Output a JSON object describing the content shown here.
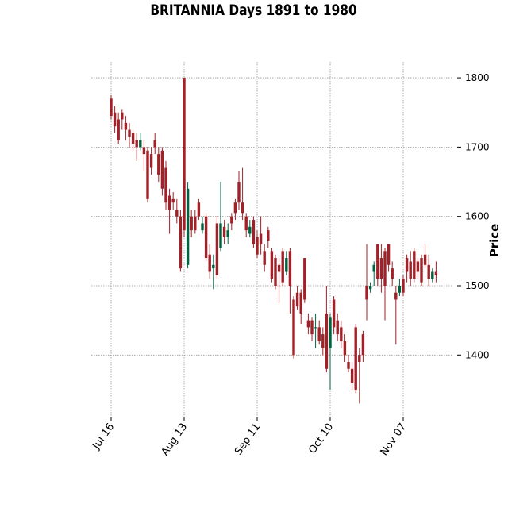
{
  "chart_data": {
    "type": "candlestick",
    "title": "BRITANNIA Days 1891 to 1980",
    "ylabel": "Price",
    "categories": [
      "Jul 16",
      null,
      null,
      null,
      null,
      null,
      null,
      null,
      null,
      null,
      null,
      null,
      null,
      null,
      null,
      null,
      null,
      null,
      null,
      null,
      "Aug 13",
      null,
      null,
      null,
      null,
      null,
      null,
      null,
      null,
      null,
      null,
      null,
      null,
      null,
      null,
      null,
      null,
      null,
      null,
      null,
      "Sep 11",
      null,
      null,
      null,
      null,
      null,
      null,
      null,
      null,
      null,
      null,
      null,
      null,
      null,
      null,
      null,
      null,
      null,
      null,
      null,
      "Oct 10",
      null,
      null,
      null,
      null,
      null,
      null,
      null,
      null,
      null,
      null,
      null,
      null,
      null,
      null,
      null,
      null,
      null,
      null,
      null,
      "Nov 07",
      null,
      null,
      null,
      null,
      null,
      null,
      null,
      null,
      null
    ],
    "open": [
      1770,
      1750,
      1740,
      1750,
      1735,
      1725,
      1720,
      1710,
      1700,
      1700,
      1695,
      1690,
      1710,
      1690,
      1695,
      1670,
      1630,
      1625,
      1610,
      1600,
      1800,
      1530,
      1600,
      1600,
      1620,
      1580,
      1600,
      1545,
      1525,
      1590,
      1555,
      1585,
      1570,
      1600,
      1620,
      1650,
      1620,
      1600,
      1575,
      1595,
      1570,
      1575,
      1550,
      1580,
      1550,
      1540,
      1530,
      1550,
      1520,
      1550,
      1480,
      1490,
      1490,
      1540,
      1450,
      1450,
      1440,
      1440,
      1430,
      1460,
      1410,
      1480,
      1450,
      1440,
      1420,
      1390,
      1380,
      1440,
      1400,
      1430,
      1500,
      1495,
      1520,
      1560,
      1540,
      1550,
      1560,
      1525,
      1490,
      1490,
      1510,
      1540,
      1535,
      1550,
      1535,
      1540,
      1545,
      1530,
      1510,
      1520
    ],
    "high": [
      1775,
      1760,
      1750,
      1755,
      1745,
      1735,
      1725,
      1720,
      1720,
      1710,
      1700,
      1700,
      1720,
      1700,
      1700,
      1680,
      1640,
      1635,
      1625,
      1610,
      1800,
      1650,
      1610,
      1610,
      1625,
      1600,
      1605,
      1560,
      1545,
      1600,
      1650,
      1595,
      1590,
      1605,
      1625,
      1665,
      1670,
      1605,
      1595,
      1600,
      1580,
      1600,
      1560,
      1585,
      1555,
      1545,
      1540,
      1555,
      1550,
      1555,
      1485,
      1500,
      1495,
      1540,
      1460,
      1455,
      1460,
      1450,
      1440,
      1500,
      1460,
      1485,
      1460,
      1450,
      1430,
      1400,
      1390,
      1445,
      1410,
      1435,
      1560,
      1505,
      1535,
      1560,
      1560,
      1555,
      1560,
      1535,
      1500,
      1510,
      1515,
      1545,
      1550,
      1555,
      1540,
      1545,
      1560,
      1545,
      1525,
      1535
    ],
    "low": [
      1740,
      1720,
      1705,
      1725,
      1710,
      1700,
      1695,
      1680,
      1695,
      1665,
      1620,
      1660,
      1690,
      1650,
      1630,
      1610,
      1575,
      1610,
      1590,
      1520,
      1570,
      1525,
      1570,
      1575,
      1595,
      1575,
      1535,
      1510,
      1495,
      1510,
      1550,
      1560,
      1560,
      1580,
      1595,
      1610,
      1595,
      1570,
      1570,
      1555,
      1540,
      1545,
      1520,
      1555,
      1505,
      1495,
      1475,
      1500,
      1515,
      1460,
      1395,
      1465,
      1445,
      1475,
      1430,
      1420,
      1410,
      1415,
      1400,
      1375,
      1350,
      1430,
      1420,
      1410,
      1390,
      1375,
      1350,
      1345,
      1330,
      1390,
      1450,
      1490,
      1500,
      1500,
      1490,
      1450,
      1520,
      1500,
      1415,
      1485,
      1485,
      1505,
      1500,
      1505,
      1510,
      1500,
      1525,
      1500,
      1505,
      1505
    ],
    "close": [
      1745,
      1730,
      1710,
      1740,
      1725,
      1715,
      1705,
      1700,
      1710,
      1690,
      1625,
      1670,
      1700,
      1660,
      1640,
      1620,
      1610,
      1620,
      1600,
      1525,
      1580,
      1640,
      1580,
      1580,
      1600,
      1590,
      1540,
      1520,
      1530,
      1515,
      1590,
      1570,
      1580,
      1590,
      1605,
      1620,
      1605,
      1580,
      1585,
      1560,
      1545,
      1560,
      1530,
      1565,
      1510,
      1500,
      1520,
      1505,
      1540,
      1500,
      1400,
      1470,
      1460,
      1480,
      1440,
      1430,
      1440,
      1420,
      1410,
      1380,
      1455,
      1440,
      1430,
      1420,
      1400,
      1380,
      1360,
      1350,
      1390,
      1400,
      1480,
      1500,
      1530,
      1510,
      1510,
      1500,
      1530,
      1510,
      1480,
      1500,
      1490,
      1520,
      1510,
      1510,
      1520,
      1505,
      1530,
      1510,
      1520,
      1515
    ],
    "up_color": "#006340",
    "down_color": "#a02128",
    "ylim": [
      1311,
      1823
    ],
    "yticks": [
      1400,
      1500,
      1600,
      1700,
      1800
    ],
    "grid": true
  }
}
